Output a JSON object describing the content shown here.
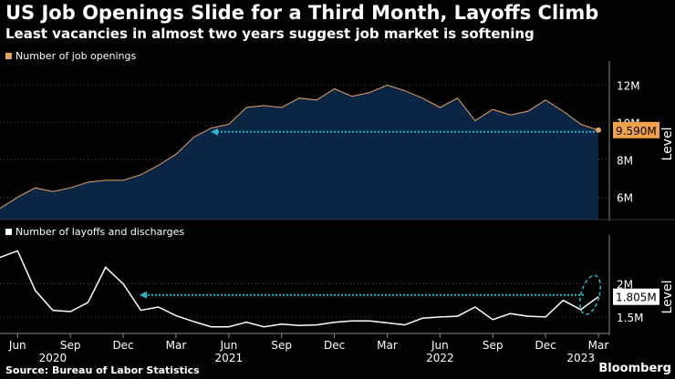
{
  "header": {
    "title": "US Job Openings Slide for a Third Month, Layoffs Climb",
    "subtitle": "Least vacancies in almost two years suggest job market is softening"
  },
  "footer": {
    "source": "Source: Bureau of Labor Statistics",
    "brand": "Bloomberg"
  },
  "colors": {
    "background": "#000000",
    "openings_line": "#e8a25c",
    "openings_fill": "#0b2545",
    "layoffs_line": "#ffffff",
    "arrow": "#2ab8c9",
    "end_label_bg_top": "#f0a24a",
    "end_label_bg_bottom": "#ffffff"
  },
  "chart_data": [
    {
      "type": "area",
      "name": "top-panel",
      "legend": "Number of job openings",
      "unit": "M",
      "ylabel": "Level",
      "ylim": [
        4.8,
        12.8
      ],
      "yticks": [
        6,
        8,
        10,
        12
      ],
      "ytick_labels": [
        "6M",
        "8M",
        "10M",
        "12M"
      ],
      "end_label": "9.590M",
      "x": [
        "2020-05",
        "2020-06",
        "2020-07",
        "2020-08",
        "2020-09",
        "2020-10",
        "2020-11",
        "2020-12",
        "2021-01",
        "2021-02",
        "2021-03",
        "2021-04",
        "2021-05",
        "2021-06",
        "2021-07",
        "2021-08",
        "2021-09",
        "2021-10",
        "2021-11",
        "2021-12",
        "2022-01",
        "2022-02",
        "2022-03",
        "2022-04",
        "2022-05",
        "2022-06",
        "2022-07",
        "2022-08",
        "2022-09",
        "2022-10",
        "2022-11",
        "2022-12",
        "2023-01",
        "2023-02",
        "2023-03"
      ],
      "values": [
        5.4,
        6.0,
        6.5,
        6.3,
        6.5,
        6.8,
        6.9,
        6.9,
        7.2,
        7.7,
        8.3,
        9.2,
        9.7,
        9.9,
        10.8,
        10.9,
        10.8,
        11.3,
        11.2,
        11.8,
        11.4,
        11.6,
        12.0,
        11.7,
        11.3,
        10.8,
        11.3,
        10.1,
        10.7,
        10.4,
        10.6,
        11.2,
        10.6,
        9.9,
        9.59
      ]
    },
    {
      "type": "line",
      "name": "bottom-panel",
      "legend": "Number of layoffs and discharges",
      "unit": "M",
      "ylabel": "Level",
      "ylim": [
        1.25,
        2.6
      ],
      "yticks": [
        1.5,
        2
      ],
      "ytick_labels": [
        "1.5M",
        "2M"
      ],
      "end_label": "1.805M",
      "x": [
        "2020-05",
        "2020-06",
        "2020-07",
        "2020-08",
        "2020-09",
        "2020-10",
        "2020-11",
        "2020-12",
        "2021-01",
        "2021-02",
        "2021-03",
        "2021-04",
        "2021-05",
        "2021-06",
        "2021-07",
        "2021-08",
        "2021-09",
        "2021-10",
        "2021-11",
        "2021-12",
        "2022-01",
        "2022-02",
        "2022-03",
        "2022-04",
        "2022-05",
        "2022-06",
        "2022-07",
        "2022-08",
        "2022-09",
        "2022-10",
        "2022-11",
        "2022-12",
        "2023-01",
        "2023-02",
        "2023-03"
      ],
      "values": [
        2.4,
        2.5,
        1.9,
        1.6,
        1.58,
        1.72,
        2.25,
        2.0,
        1.6,
        1.65,
        1.52,
        1.43,
        1.35,
        1.35,
        1.42,
        1.35,
        1.39,
        1.37,
        1.38,
        1.42,
        1.44,
        1.44,
        1.41,
        1.38,
        1.48,
        1.5,
        1.51,
        1.65,
        1.46,
        1.55,
        1.51,
        1.5,
        1.75,
        1.61,
        1.805
      ]
    }
  ],
  "x_axis": {
    "months": [
      {
        "label": "Jun",
        "date": "2020-06"
      },
      {
        "label": "Sep",
        "date": "2020-09"
      },
      {
        "label": "Dec",
        "date": "2020-12"
      },
      {
        "label": "Mar",
        "date": "2021-03"
      },
      {
        "label": "Jun",
        "date": "2021-06"
      },
      {
        "label": "Sep",
        "date": "2021-09"
      },
      {
        "label": "Dec",
        "date": "2021-12"
      },
      {
        "label": "Mar",
        "date": "2022-03"
      },
      {
        "label": "Jun",
        "date": "2022-06"
      },
      {
        "label": "Sep",
        "date": "2022-09"
      },
      {
        "label": "Dec",
        "date": "2022-12"
      },
      {
        "label": "Mar",
        "date": "2023-03"
      }
    ],
    "years": [
      {
        "label": "2020",
        "date": "2020-08"
      },
      {
        "label": "2021",
        "date": "2021-06"
      },
      {
        "label": "2022",
        "date": "2022-06"
      },
      {
        "label": "2023",
        "date": "2023-02"
      }
    ]
  }
}
